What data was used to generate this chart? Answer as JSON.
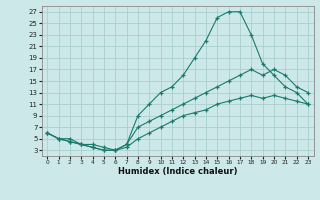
{
  "xlabel": "Humidex (Indice chaleur)",
  "bg_color": "#cce8e8",
  "grid_color": "#aacfcf",
  "line_color": "#1a7a6e",
  "xlim": [
    -0.5,
    23.5
  ],
  "ylim": [
    2,
    28
  ],
  "yticks": [
    3,
    5,
    7,
    9,
    11,
    13,
    15,
    17,
    19,
    21,
    23,
    25,
    27
  ],
  "xticks": [
    0,
    1,
    2,
    3,
    4,
    5,
    6,
    7,
    8,
    9,
    10,
    11,
    12,
    13,
    14,
    15,
    16,
    17,
    18,
    19,
    20,
    21,
    22,
    23
  ],
  "line1_x": [
    0,
    1,
    2,
    3,
    4,
    5,
    6,
    7,
    8,
    9,
    10,
    11,
    12,
    13,
    14,
    15,
    16,
    17,
    18,
    19,
    20,
    21,
    22,
    23
  ],
  "line1_y": [
    6,
    5,
    5,
    4,
    4,
    3.5,
    3,
    4,
    9,
    11,
    13,
    14,
    16,
    19,
    22,
    26,
    27,
    27,
    23,
    18,
    16,
    14,
    13,
    11
  ],
  "line2_x": [
    0,
    1,
    2,
    3,
    4,
    5,
    6,
    7,
    8,
    9,
    10,
    11,
    12,
    13,
    14,
    15,
    16,
    17,
    18,
    19,
    20,
    21,
    22,
    23
  ],
  "line2_y": [
    6,
    5,
    4.5,
    4,
    3.5,
    3,
    3,
    4,
    7,
    8,
    9,
    10,
    11,
    12,
    13,
    14,
    15,
    16,
    17,
    16,
    17,
    16,
    14,
    13
  ],
  "line3_x": [
    0,
    1,
    2,
    3,
    4,
    5,
    6,
    7,
    8,
    9,
    10,
    11,
    12,
    13,
    14,
    15,
    16,
    17,
    18,
    19,
    20,
    21,
    22,
    23
  ],
  "line3_y": [
    6,
    5,
    4.5,
    4,
    3.5,
    3,
    3,
    3.5,
    5,
    6,
    7,
    8,
    9,
    9.5,
    10,
    11,
    11.5,
    12,
    12.5,
    12,
    12.5,
    12,
    11.5,
    11
  ]
}
